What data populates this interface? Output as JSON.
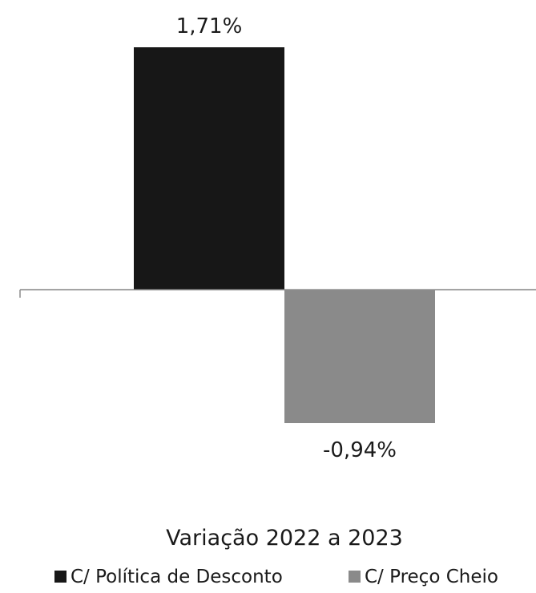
{
  "chart_data": {
    "type": "bar",
    "categories": [
      "Variação 2022 a 2023"
    ],
    "series": [
      {
        "name": "C/ Política de Desconto",
        "values": [
          1.71
        ],
        "label": "1,71%",
        "color": "#171717"
      },
      {
        "name": "C/ Preço Cheio",
        "values": [
          -0.94
        ],
        "label": "-0,94%",
        "color": "#8a8a8a"
      }
    ],
    "xlabel": "",
    "ylabel": "",
    "ylim": [
      -0.94,
      1.71
    ],
    "grid": false,
    "legend_position": "bottom",
    "axis_color": "#8c8c8c"
  }
}
